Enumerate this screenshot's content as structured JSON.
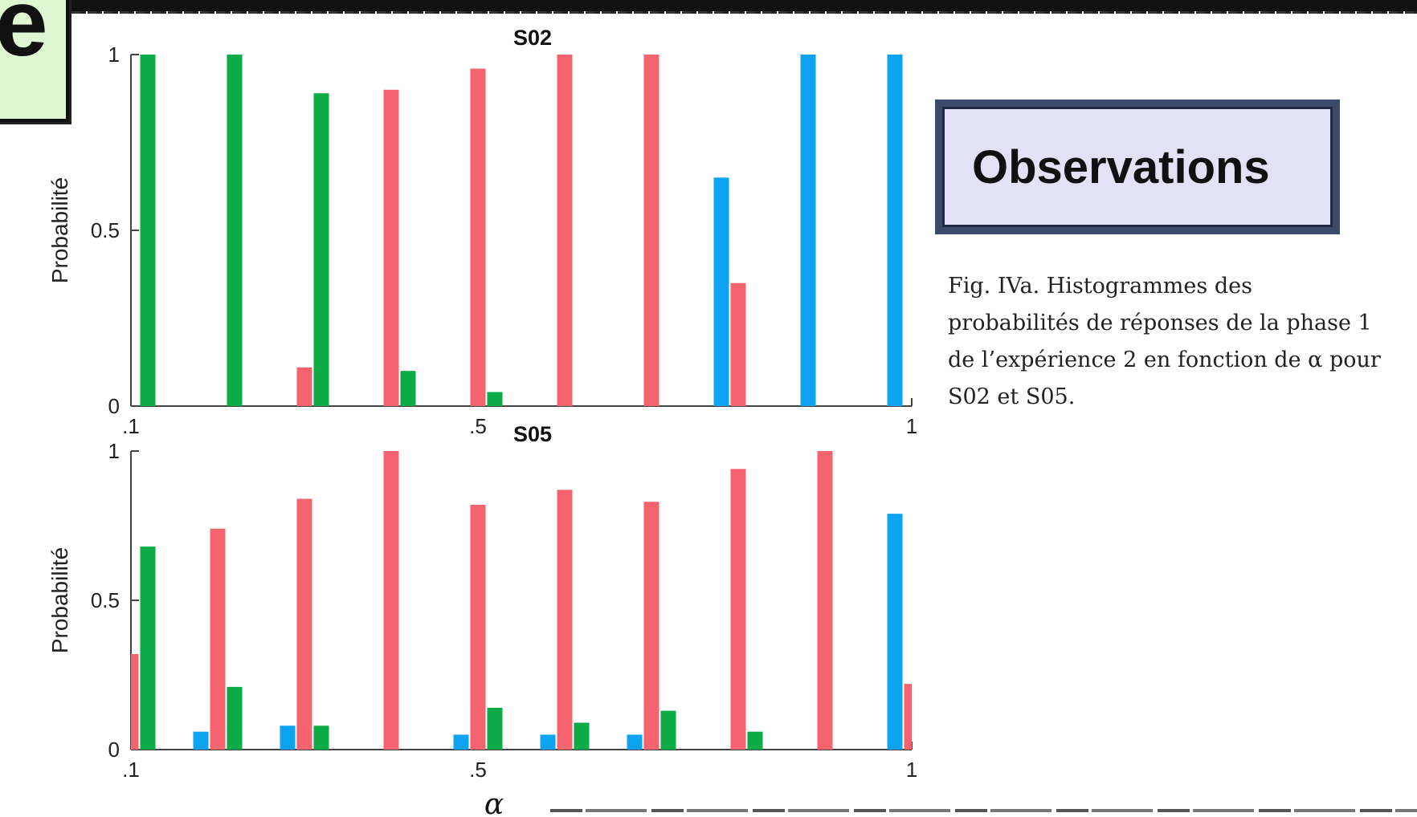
{
  "page": {
    "corner_letter": "e"
  },
  "observations": {
    "title": "Observations",
    "caption_lines": [
      "Fig. IVa. Histogrammes des",
      "probabilités de réponses de la phase 1",
      "de l’expérience 2 en fonction de α pour",
      "S02 et S05."
    ]
  },
  "colors": {
    "red": "#f4636e",
    "green": "#0bab48",
    "blue": "#0ea3f1",
    "axis": "#444444"
  },
  "chart_data": [
    {
      "type": "bar",
      "title": "S02",
      "ylabel": "Probabilité",
      "xlabel": "",
      "ylim": [
        0,
        1
      ],
      "yticks": [
        "0",
        "0.5",
        "1"
      ],
      "xticks": [
        ".1",
        ".5",
        "1"
      ],
      "categories": [
        0.1,
        0.2,
        0.3,
        0.4,
        0.5,
        0.6,
        0.7,
        0.8,
        0.9,
        1.0
      ],
      "series": [
        {
          "color": "blue",
          "values": [
            0,
            0,
            0,
            0,
            0,
            0,
            0,
            0.65,
            1,
            1
          ]
        },
        {
          "color": "red",
          "values": [
            0,
            0,
            0.11,
            0.9,
            0.96,
            1,
            1,
            0.35,
            0,
            0
          ]
        },
        {
          "color": "green",
          "values": [
            1,
            1,
            0.89,
            0.1,
            0.04,
            0,
            0,
            0,
            0,
            0
          ]
        }
      ]
    },
    {
      "type": "bar",
      "title": "S05",
      "ylabel": "Probabilité",
      "xlabel": "α",
      "ylim": [
        0,
        1
      ],
      "yticks": [
        "0",
        "0.5",
        "1"
      ],
      "xticks": [
        ".1",
        ".5",
        "1"
      ],
      "categories": [
        0.1,
        0.2,
        0.3,
        0.4,
        0.5,
        0.6,
        0.7,
        0.8,
        0.9,
        1.0
      ],
      "series": [
        {
          "color": "blue",
          "values": [
            0,
            0.06,
            0.08,
            0,
            0.05,
            0.05,
            0.05,
            0,
            0,
            0.79
          ]
        },
        {
          "color": "red",
          "values": [
            0.32,
            0.74,
            0.84,
            1,
            0.82,
            0.87,
            0.83,
            0.94,
            1,
            0.22
          ]
        },
        {
          "color": "green",
          "values": [
            0.68,
            0.21,
            0.08,
            0,
            0.14,
            0.09,
            0.13,
            0.06,
            0,
            0
          ]
        }
      ]
    }
  ]
}
